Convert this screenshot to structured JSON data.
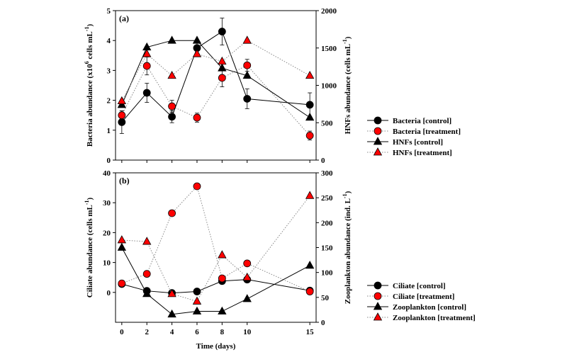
{
  "chart_data": [
    {
      "panel_label": "(a)",
      "type": "line",
      "x": [
        0,
        2,
        4,
        6,
        8,
        10,
        15
      ],
      "xlim": [
        -0.5,
        15.5
      ],
      "left_axis": {
        "label": "Bacteria abundance (x10",
        "label_sup": "6",
        "label_end": " cells mL",
        "label_sup2": "-1",
        "label_close": ")",
        "ylim": [
          0,
          5
        ],
        "ticks": [
          "0",
          "1",
          "2",
          "3",
          "4",
          "5"
        ]
      },
      "right_axis": {
        "label": "HNFs abundance (cells mL",
        "label_sup": "-1",
        "label_close": ")",
        "ylim": [
          0,
          2000
        ],
        "ticks": [
          "0",
          "500",
          "1000",
          "1500",
          "2000"
        ]
      },
      "series": [
        {
          "name": "Bacteria [control]",
          "axis": "left",
          "marker": "circle",
          "color": "#000000",
          "line": "solid",
          "values": [
            1.27,
            2.25,
            1.45,
            3.75,
            4.3,
            2.05,
            1.85
          ],
          "errors": [
            0.38,
            0.32,
            0.2,
            0.22,
            0.45,
            0.33,
            0.4
          ]
        },
        {
          "name": "Bacteria [treatment]",
          "axis": "left",
          "marker": "circle",
          "color": "#ff0000",
          "line": "dotted",
          "values": [
            1.5,
            3.15,
            1.8,
            1.42,
            2.75,
            3.17,
            0.82
          ],
          "errors": [
            0.15,
            0.3,
            0.2,
            0.15,
            0.3,
            0.2,
            0.15
          ]
        },
        {
          "name": "HNFs [control]",
          "axis": "right",
          "marker": "triangle",
          "color": "#000000",
          "line": "solid",
          "values": [
            740,
            1510,
            1600,
            1600,
            1230,
            1130,
            570
          ]
        },
        {
          "name": "HNFs [treatment]",
          "axis": "right",
          "marker": "triangle",
          "color": "#ff0000",
          "line": "dotted",
          "values": [
            790,
            1420,
            1130,
            1420,
            1320,
            1600,
            1130
          ]
        }
      ]
    },
    {
      "panel_label": "(b)",
      "type": "line",
      "x": [
        0,
        2,
        4,
        6,
        8,
        10,
        15
      ],
      "xlim": [
        -0.5,
        15.5
      ],
      "xlabel": "Time (days)",
      "xticks": [
        "0",
        "2",
        "4",
        "6",
        "8",
        "10",
        "15"
      ],
      "left_axis": {
        "label": "Ciliate abundance (cells mL",
        "label_sup": "-1",
        "label_close": ")",
        "ylim": [
          -10,
          40
        ],
        "ticks": [
          "0",
          "10",
          "20",
          "30",
          "40"
        ]
      },
      "right_axis": {
        "label": "Zooplankton abundance (ind. L",
        "label_sup": "-1",
        "label_close": ")",
        "ylim": [
          0,
          300
        ],
        "ticks": [
          "0",
          "50",
          "100",
          "150",
          "200",
          "250",
          "300"
        ]
      },
      "series": [
        {
          "name": "Ciliate [control]",
          "axis": "left",
          "marker": "circle",
          "color": "#000000",
          "line": "solid",
          "values": [
            2.8,
            0.5,
            -0.2,
            0.3,
            3.8,
            4.3,
            0.6
          ]
        },
        {
          "name": "Ciliate [treatment]",
          "axis": "left",
          "marker": "circle",
          "color": "#ff0000",
          "line": "dotted",
          "values": [
            3.0,
            6.2,
            26.5,
            35.5,
            4.7,
            9.7,
            0.3
          ]
        },
        {
          "name": "Zooplankton [control]",
          "axis": "right",
          "marker": "triangle",
          "color": "#000000",
          "line": "solid",
          "values": [
            150,
            57,
            16,
            22,
            22,
            47,
            114
          ]
        },
        {
          "name": "Zooplankton [treatment]",
          "axis": "right",
          "marker": "triangle",
          "color": "#ff0000",
          "line": "dotted",
          "values": [
            165,
            162,
            57,
            42,
            135,
            90,
            254
          ]
        }
      ]
    }
  ]
}
